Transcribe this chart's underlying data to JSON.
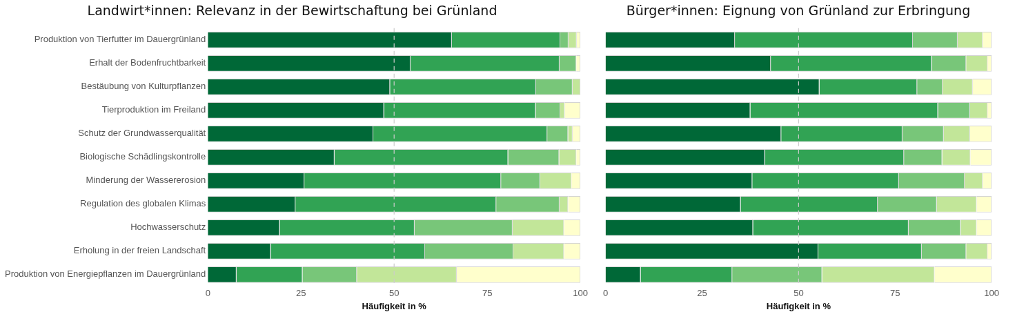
{
  "chart_data": [
    {
      "type": "bar",
      "title": "Landwirt*innen: Relevanz in der Bewirtschaftung bei Grünland",
      "xlabel": "Häufigkeit in %",
      "orientation": "horizontal",
      "stacked": true,
      "grid": false,
      "legend": false,
      "categories": [
        "Produktion von Tierfutter im Dauergrünland",
        "Erhalt der Bodenfruchtbarkeit",
        "Bestäubung von Kulturpflanzen",
        "Tierproduktion im Freiland",
        "Schutz der Grundwasserqualität",
        "Biologische Schädlingskontrolle",
        "Minderung der Wassererosion",
        "Regulation des globalen Klimas",
        "Hochwasserschutz",
        "Erholung in der freien Landschaft",
        "Produktion von Energiepflanzen im Dauergrünland"
      ],
      "series": [
        {
          "color": "#006837",
          "values": [
            65.5,
            54.4,
            48.9,
            47.3,
            44.4,
            34.0,
            25.9,
            23.5,
            19.3,
            16.9,
            7.7
          ]
        },
        {
          "color": "#31a354",
          "values": [
            29.1,
            40.0,
            39.2,
            40.7,
            46.7,
            46.6,
            52.8,
            53.9,
            36.2,
            41.4,
            17.7
          ]
        },
        {
          "color": "#78c679",
          "values": [
            2.2,
            4.5,
            9.8,
            6.6,
            5.6,
            13.7,
            10.5,
            17.0,
            26.3,
            23.7,
            14.6
          ]
        },
        {
          "color": "#c2e699",
          "values": [
            2.2,
            0,
            2.1,
            1.2,
            1.2,
            4.6,
            8.4,
            2.3,
            13.8,
            13.6,
            26.8
          ]
        },
        {
          "color": "#ffffcc",
          "values": [
            1.0,
            1.1,
            0,
            4.2,
            2.1,
            1.1,
            2.4,
            3.3,
            4.4,
            4.4,
            33.2
          ]
        }
      ],
      "xlim": [
        0,
        100
      ],
      "xticks": [
        0,
        25,
        50,
        75,
        100
      ],
      "ref_lines": [
        {
          "axis": "x",
          "value": 50,
          "color": "#cccccc",
          "line_style": "dashed"
        }
      ]
    },
    {
      "type": "bar",
      "title": "Bürger*innen: Eignung von Grünland zur Erbringung",
      "xlabel": "Häufigkeit in %",
      "orientation": "horizontal",
      "stacked": true,
      "grid": false,
      "legend": false,
      "tick_labels": "x",
      "categories": [
        null,
        null,
        null,
        null,
        null,
        null,
        null,
        null,
        null,
        null,
        null
      ],
      "series": [
        {
          "color": "#006837",
          "values": [
            33.5,
            42.8,
            55.4,
            37.5,
            45.5,
            41.3,
            38.0,
            35.0,
            38.2,
            55.1,
            9.1
          ]
        },
        {
          "color": "#31a354",
          "values": [
            46.1,
            41.7,
            25.3,
            48.6,
            31.4,
            36.0,
            38.0,
            35.5,
            40.3,
            26.8,
            23.7
          ]
        },
        {
          "color": "#78c679",
          "values": [
            11.6,
            8.9,
            6.6,
            8.3,
            10.7,
            9.9,
            17.0,
            15.3,
            13.5,
            11.5,
            23.3
          ]
        },
        {
          "color": "#c2e699",
          "values": [
            6.5,
            5.5,
            7.8,
            4.5,
            6.8,
            7.3,
            4.7,
            10.3,
            4.1,
            5.5,
            29.1
          ]
        },
        {
          "color": "#ffffcc",
          "values": [
            2.3,
            1.1,
            4.9,
            1.1,
            5.6,
            5.5,
            2.3,
            3.9,
            3.9,
            1.1,
            14.8
          ]
        }
      ],
      "xlim": [
        0,
        100
      ],
      "xticks": [
        0,
        25,
        50,
        75,
        100
      ],
      "ref_lines": [
        {
          "axis": "x",
          "value": 50,
          "color": "#cccccc",
          "line_style": "dashed"
        }
      ]
    }
  ]
}
